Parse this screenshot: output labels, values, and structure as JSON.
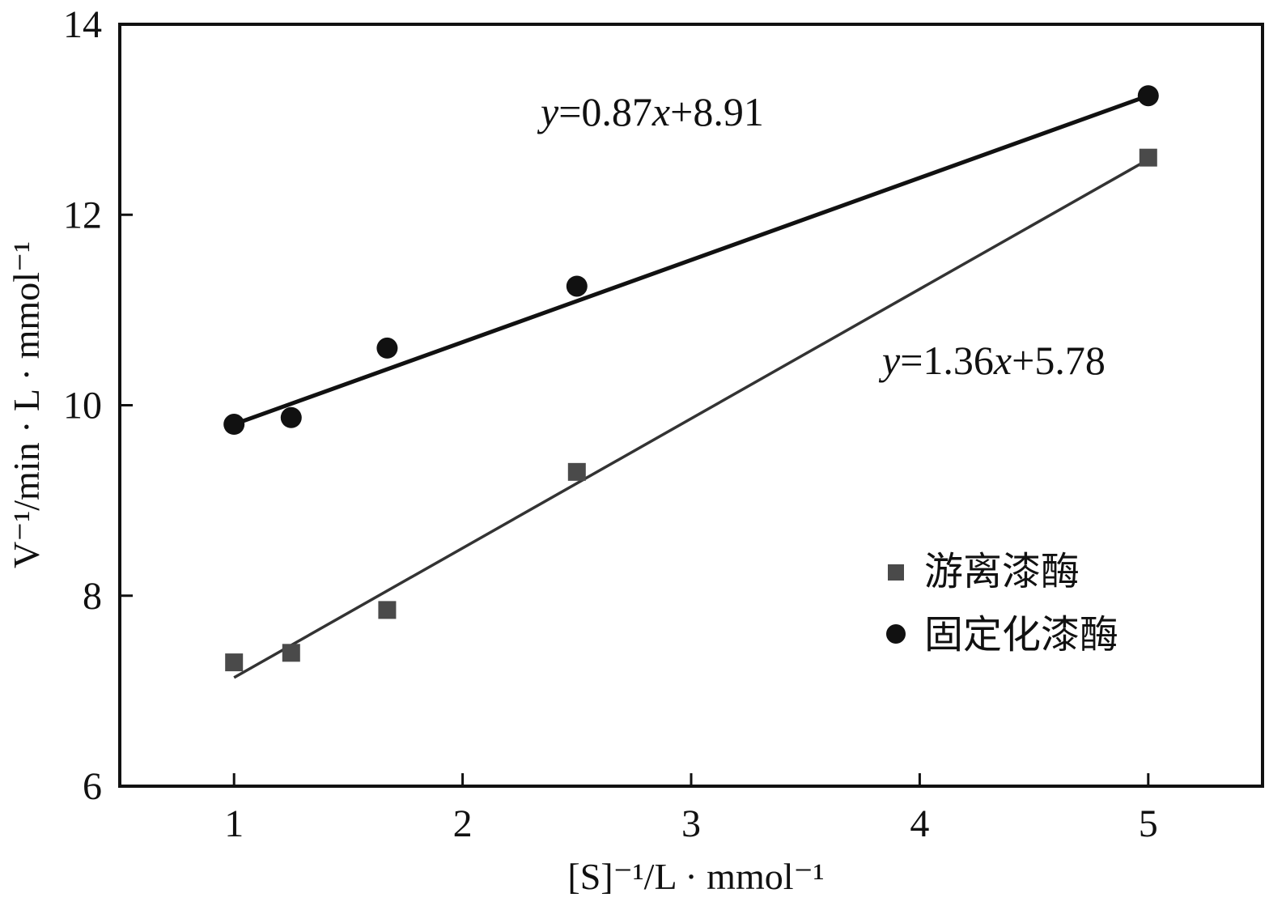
{
  "chart_data": {
    "type": "scatter",
    "xlim": [
      0.5,
      5.5
    ],
    "ylim": [
      6,
      14
    ],
    "xticks": [
      "1",
      "2",
      "3",
      "4",
      "5"
    ],
    "yticks": [
      "6",
      "8",
      "10",
      "12",
      "14"
    ],
    "xlabel": "[S]⁻¹/L · mmol⁻¹",
    "ylabel": "V⁻¹/min · L · mmol⁻¹",
    "grid": false,
    "legend_position": "lower-right",
    "series": [
      {
        "name": "游离漆酶",
        "marker": "square",
        "color": "#4a4a4a",
        "points": [
          {
            "x": 1.0,
            "y": 7.3
          },
          {
            "x": 1.25,
            "y": 7.4
          },
          {
            "x": 1.67,
            "y": 7.85
          },
          {
            "x": 2.5,
            "y": 9.3
          },
          {
            "x": 5.0,
            "y": 12.6
          }
        ],
        "fit": {
          "label": "y=1.36x+5.78",
          "x_range": [
            1.0,
            5.0
          ],
          "y_range": [
            7.14,
            12.58
          ],
          "color": "#333333"
        }
      },
      {
        "name": "固定化漆酶",
        "marker": "circle",
        "color": "#111111",
        "points": [
          {
            "x": 1.0,
            "y": 9.8
          },
          {
            "x": 1.25,
            "y": 9.87
          },
          {
            "x": 1.67,
            "y": 10.6
          },
          {
            "x": 2.5,
            "y": 11.25
          },
          {
            "x": 5.0,
            "y": 13.25
          }
        ],
        "fit": {
          "label": "y=0.87x+8.91",
          "x_range": [
            1.0,
            5.0
          ],
          "y_range": [
            9.8,
            13.25
          ],
          "color": "#111111"
        }
      }
    ]
  }
}
